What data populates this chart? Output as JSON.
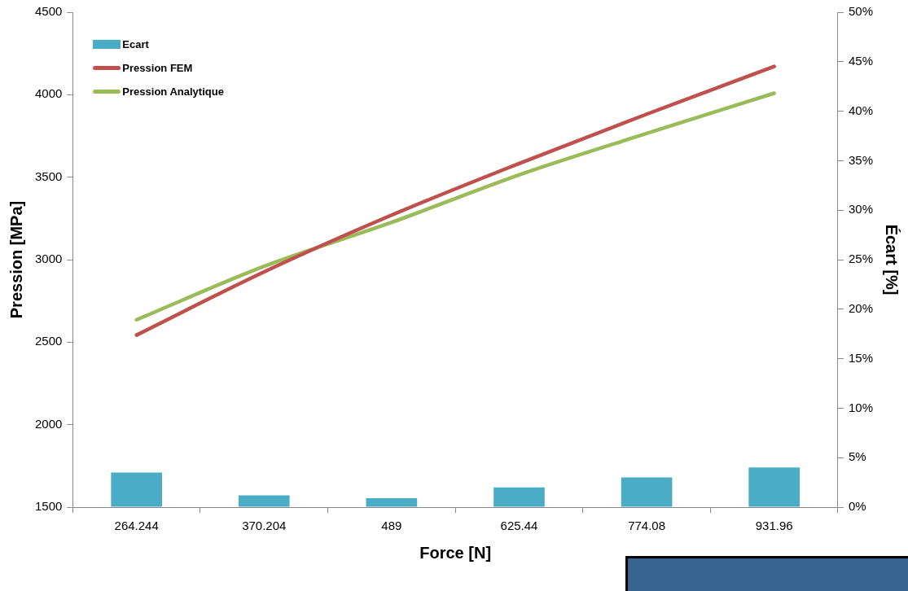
{
  "chart_data": {
    "type": "bar",
    "xlabel": "Force [N]",
    "ylabel": "Pression [MPa]",
    "y2label": "Écart [%]",
    "categories": [
      "264.244",
      "370.204",
      "489",
      "625.44",
      "774.08",
      "931.96"
    ],
    "series": [
      {
        "name": "Ecart",
        "axis": "y2",
        "color": "#4bacc6",
        "values": [
          3.5,
          1.2,
          0.9,
          2.0,
          3.0,
          4.0
        ]
      },
      {
        "name": "Pression FEM",
        "type": "line",
        "color": "#c0504d",
        "values": [
          2543,
          2926,
          3270,
          3583,
          3882,
          4171
        ]
      },
      {
        "name": "Pression Analytique",
        "type": "line",
        "color": "#9bbb59",
        "values": [
          2636,
          2960,
          3226,
          3514,
          3765,
          4009
        ]
      }
    ],
    "ylim": [
      1500,
      4500
    ],
    "yticks": [
      1500,
      2000,
      2500,
      3000,
      3500,
      4000,
      4500
    ],
    "y2lim": [
      0,
      50
    ],
    "y2ticks": [
      {
        "value": 0,
        "label": "0%"
      },
      {
        "value": 5,
        "label": "5%"
      },
      {
        "value": 10,
        "label": "10%"
      },
      {
        "value": 15,
        "label": "15%"
      },
      {
        "value": 20,
        "label": "20%"
      },
      {
        "value": 25,
        "label": "25%"
      },
      {
        "value": 30,
        "label": "30%"
      },
      {
        "value": 35,
        "label": "35%"
      },
      {
        "value": 40,
        "label": "40%"
      },
      {
        "value": 45,
        "label": "45%"
      },
      {
        "value": 50,
        "label": "50%"
      }
    ],
    "grid": false,
    "legend": "top left",
    "marker": "none",
    "line_style": "solid"
  }
}
